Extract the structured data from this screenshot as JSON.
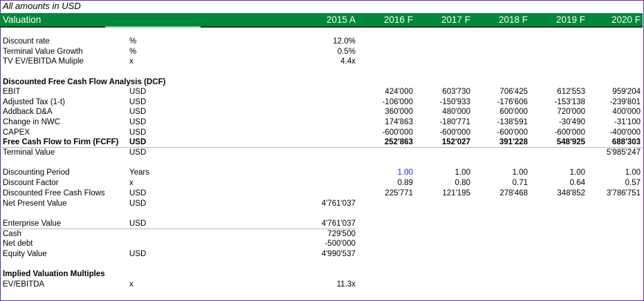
{
  "note": "All amounts in USD",
  "header": {
    "title": "Valuation",
    "years": [
      "2015 A",
      "2016 F",
      "2017 F",
      "2018 F",
      "2019 F",
      "2020 F"
    ]
  },
  "colors": {
    "header_green": "#00873c",
    "input_blue": "#1a1adc",
    "frame": "#5a2ca0"
  },
  "rows": [
    {
      "label": "Discount rate",
      "unit": "%",
      "values": [
        "12.0%",
        "",
        "",
        "",
        "",
        ""
      ]
    },
    {
      "label": "Terminal Value Growth",
      "unit": "%",
      "values": [
        "0.5%",
        "",
        "",
        "",
        "",
        ""
      ]
    },
    {
      "label": "TV EV/EBITDA Muliple",
      "unit": "x",
      "values": [
        "4.4x",
        "",
        "",
        "",
        "",
        ""
      ]
    },
    {
      "label": "Discounted Free Cash Flow Analysis (DCF)",
      "unit": "",
      "values": [
        "",
        "",
        "",
        "",
        "",
        ""
      ],
      "bold": true
    },
    {
      "label": "EBIT",
      "unit": "USD",
      "values": [
        "",
        "424'000",
        "603'730",
        "706'425",
        "612'553",
        "959'204"
      ]
    },
    {
      "label": "Adjusted Tax (1-t)",
      "unit": "USD",
      "values": [
        "",
        "-106'000",
        "-150'933",
        "-176'606",
        "-153'138",
        "-239'801"
      ]
    },
    {
      "label": "Addback D&A",
      "unit": "USD",
      "values": [
        "",
        "360'000",
        "480'000",
        "600'000",
        "720'000",
        "400'000"
      ]
    },
    {
      "label": "Change in NWC",
      "unit": "USD",
      "values": [
        "",
        "174'863",
        "-180'771",
        "-138'591",
        "-30'490",
        "-31'100"
      ]
    },
    {
      "label": "CAPEX",
      "unit": "USD",
      "values": [
        "",
        "-600'000",
        "-600'000",
        "-600'000",
        "-600'000",
        "-400'000"
      ]
    },
    {
      "label": "Free Cash Flow to Firm (FCFF)",
      "unit": "USD",
      "values": [
        "",
        "252'863",
        "152'027",
        "391'228",
        "548'925",
        "688'303"
      ],
      "bold": true
    },
    {
      "label": "Terminal Value",
      "unit": "USD",
      "values": [
        "",
        "",
        "",
        "",
        "",
        "5'985'247"
      ]
    },
    {
      "label": "Discounting Period",
      "unit": "Years",
      "values": [
        "",
        "1.00",
        "1.00",
        "1.00",
        "1.00",
        "1.00"
      ]
    },
    {
      "label": "Discount Factor",
      "unit": "x",
      "values": [
        "",
        "0.89",
        "0.80",
        "0.71",
        "0.64",
        "0.57"
      ]
    },
    {
      "label": "Discounted Free Cash Flows",
      "unit": "USD",
      "values": [
        "",
        "225'771",
        "121'195",
        "278'468",
        "348'852",
        "3'786'751"
      ]
    },
    {
      "label": "Net Present Value",
      "unit": "USD",
      "values": [
        "4'761'037",
        "",
        "",
        "",
        "",
        ""
      ]
    },
    {
      "label": "Enterprise Value",
      "unit": "USD",
      "values": [
        "4'761'037",
        "",
        "",
        "",
        "",
        ""
      ]
    },
    {
      "label": "Cash",
      "unit": "",
      "values": [
        "729'500",
        "",
        "",
        "",
        "",
        ""
      ]
    },
    {
      "label": "Net debt",
      "unit": "",
      "values": [
        "-500'000",
        "",
        "",
        "",
        "",
        ""
      ]
    },
    {
      "label": "Equity Value",
      "unit": "USD",
      "values": [
        "4'990'537",
        "",
        "",
        "",
        "",
        ""
      ]
    },
    {
      "label": "Implied Valuation Multiples",
      "unit": "",
      "values": [
        "",
        "",
        "",
        "",
        "",
        ""
      ],
      "bold": true
    },
    {
      "label": "EV/EBITDA",
      "unit": "x",
      "values": [
        "11.3x",
        "",
        "",
        "",
        "",
        ""
      ]
    }
  ]
}
